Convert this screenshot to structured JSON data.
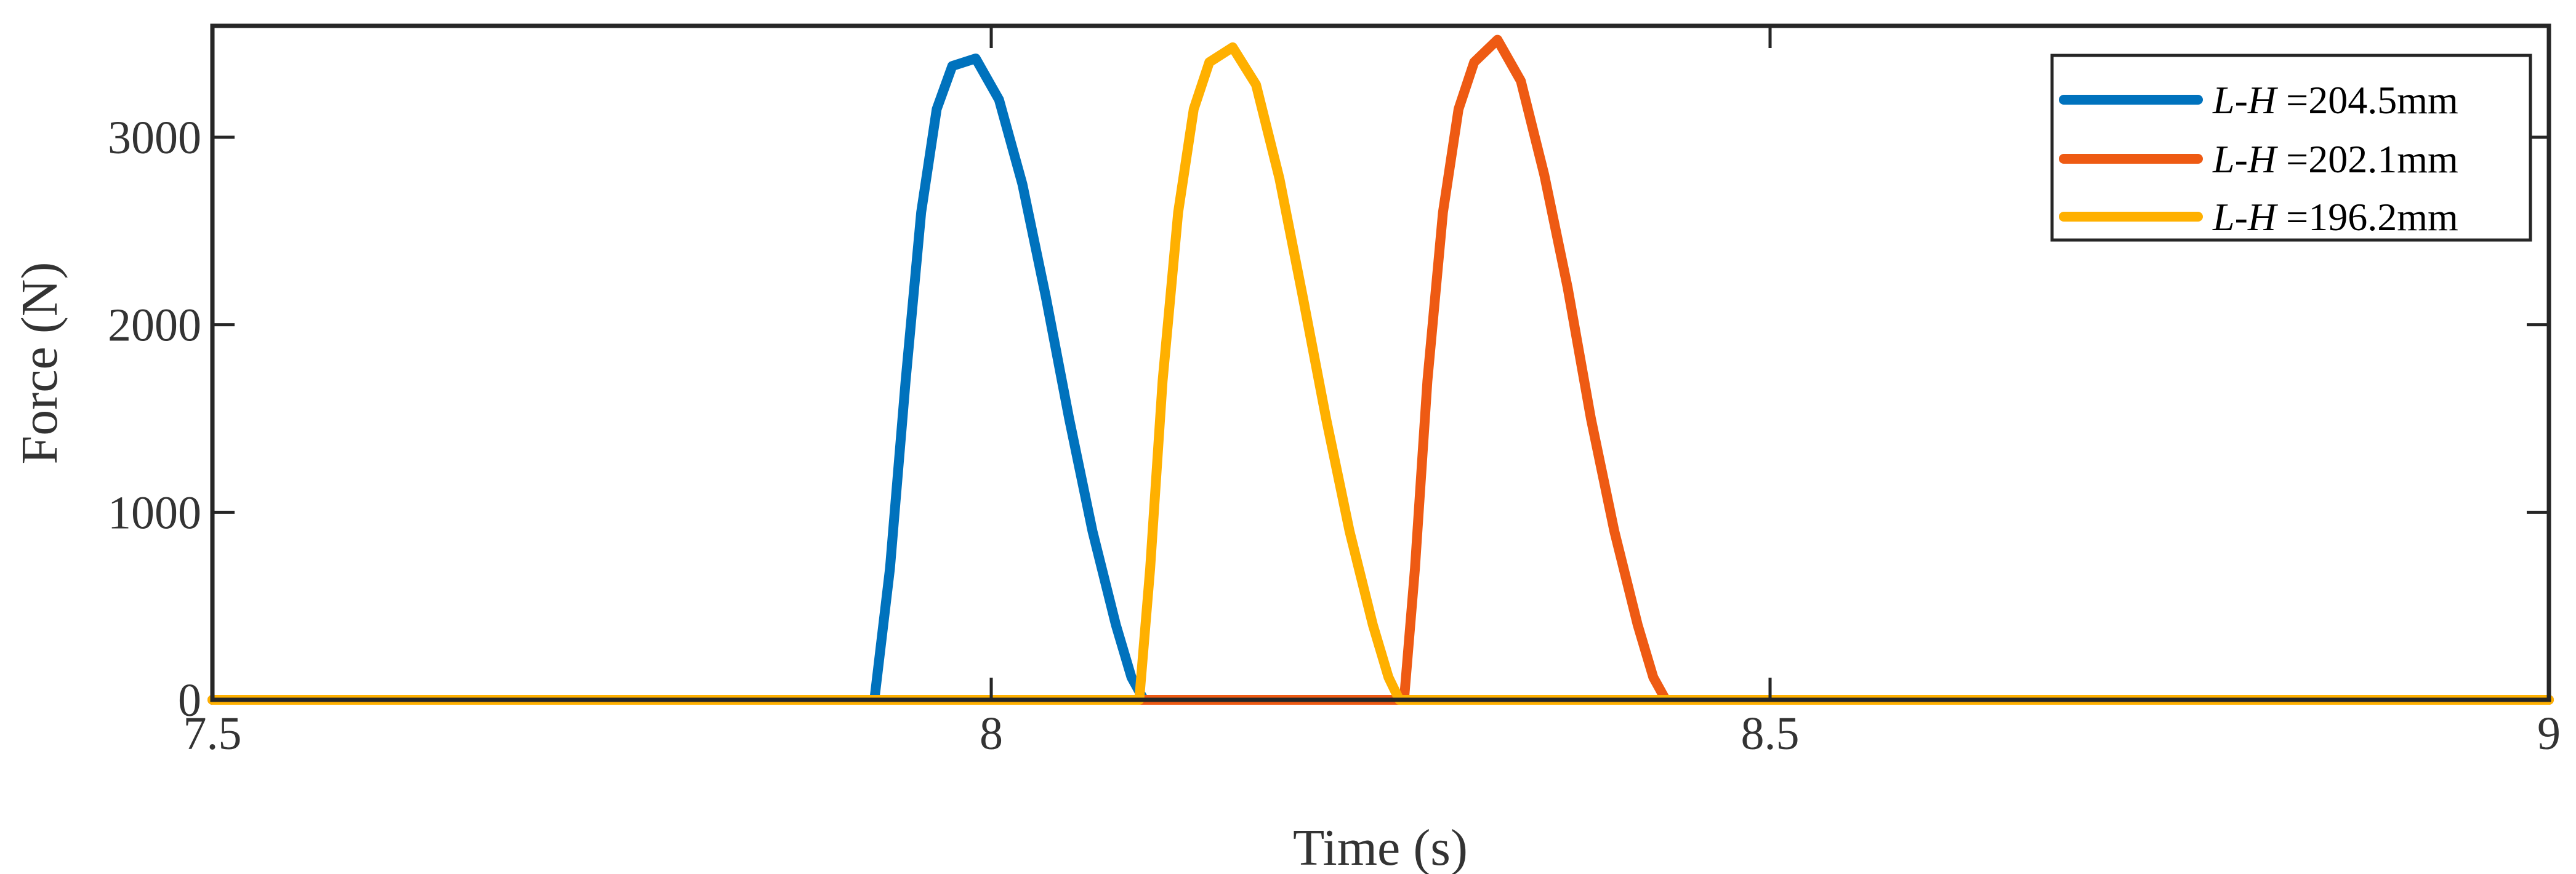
{
  "chart_data": {
    "type": "line",
    "title": "",
    "xlabel": "Time (s)",
    "ylabel": "Force (N)",
    "xlim": [
      7.5,
      9
    ],
    "ylim": [
      0,
      3600
    ],
    "xticks": [
      7.5,
      8,
      8.5,
      9
    ],
    "xtick_labels": [
      "7.5",
      "8",
      "8.5",
      "9"
    ],
    "yticks": [
      0,
      1000,
      2000,
      3000
    ],
    "ytick_labels": [
      "0",
      "1000",
      "2000",
      "3000"
    ],
    "grid": false,
    "legend_position": "top-right",
    "series": [
      {
        "name": "L-H =204.5mm",
        "legend_italic": "L-H",
        "legend_rest": " =204.5mm",
        "color": "#0072BD",
        "x": [
          7.5,
          7.925,
          7.935,
          7.945,
          7.955,
          7.965,
          7.975,
          7.99,
          8.005,
          8.02,
          8.035,
          8.05,
          8.065,
          8.08,
          8.09,
          8.098,
          8.105,
          9
        ],
        "y": [
          0,
          0,
          700,
          1700,
          2600,
          3150,
          3380,
          3420,
          3200,
          2750,
          2150,
          1500,
          900,
          400,
          120,
          0,
          0,
          0
        ]
      },
      {
        "name": "L-H =202.1mm",
        "legend_italic": "L-H",
        "legend_rest": " =202.1mm",
        "color": "#EE5A13",
        "x": [
          7.5,
          8.265,
          8.272,
          8.28,
          8.29,
          8.3,
          8.31,
          8.325,
          8.34,
          8.355,
          8.37,
          8.385,
          8.4,
          8.415,
          8.425,
          8.433,
          8.44,
          9
        ],
        "y": [
          0,
          0,
          700,
          1700,
          2600,
          3150,
          3400,
          3520,
          3300,
          2800,
          2200,
          1500,
          900,
          400,
          120,
          0,
          0,
          0
        ]
      },
      {
        "name": "L-H =196.2mm",
        "legend_italic": "L-H",
        "legend_rest": " =196.2mm",
        "color": "#FFB000",
        "x": [
          7.5,
          8.095,
          8.102,
          8.11,
          8.12,
          8.13,
          8.14,
          8.155,
          8.17,
          8.185,
          8.2,
          8.215,
          8.23,
          8.245,
          8.255,
          8.262,
          8.27,
          9
        ],
        "y": [
          0,
          0,
          700,
          1700,
          2600,
          3150,
          3400,
          3480,
          3280,
          2780,
          2150,
          1500,
          900,
          400,
          120,
          0,
          0,
          0
        ]
      }
    ]
  }
}
